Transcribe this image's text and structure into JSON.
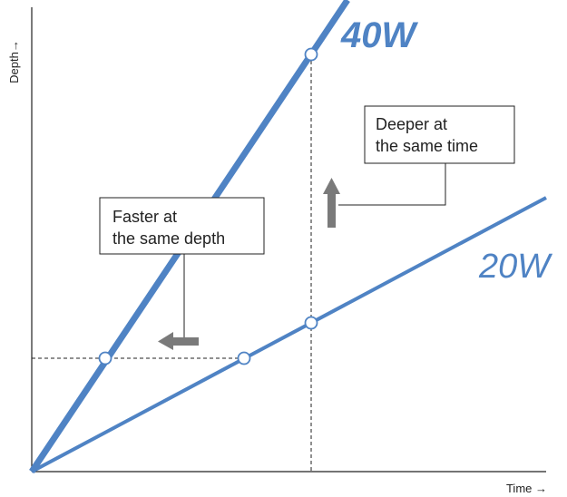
{
  "axes": {
    "x_label": "Time →",
    "y_label": "Depth→"
  },
  "series": [
    {
      "name": "40W",
      "color": "#4f83c4"
    },
    {
      "name": "20W",
      "color": "#4f83c4"
    }
  ],
  "callouts": {
    "faster": {
      "line1": "Faster at",
      "line2": "the same depth"
    },
    "deeper": {
      "line1": "Deeper at",
      "line2": "the same time"
    }
  },
  "arrows": {
    "color": "#7a7a7a"
  }
}
